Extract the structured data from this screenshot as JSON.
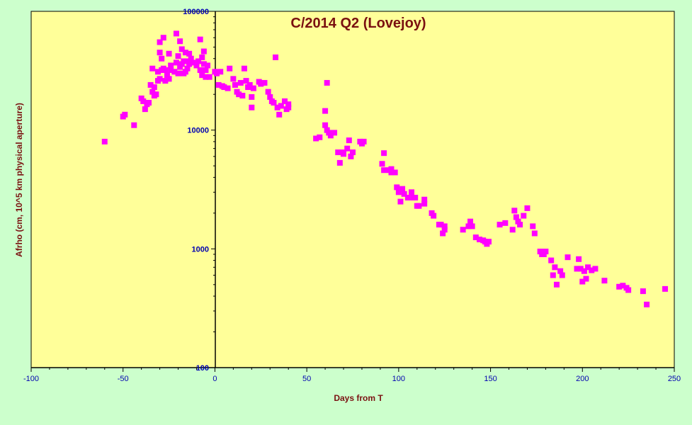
{
  "colors": {
    "outer_background": "#ccffcc",
    "plot_background": "#ffff99",
    "marker": "#ff00ff",
    "title": "#7a1010",
    "tick_labels": "#0000b0"
  },
  "chart_data": {
    "type": "scatter",
    "title": "C/2014 Q2 (Lovejoy)",
    "xlabel": "Days from T",
    "ylabel": "Afrho (cm, 10^5 km physical aperture)",
    "xlim": [
      -100,
      250
    ],
    "ylim": [
      100,
      100000
    ],
    "yscale": "log",
    "x_ticks": [
      -100,
      -50,
      0,
      50,
      100,
      150,
      200,
      250
    ],
    "x_tick_labels": [
      "-100",
      "-50",
      "0",
      "50",
      "100",
      "150",
      "200",
      "250"
    ],
    "y_ticks": [
      100,
      1000,
      10000,
      100000
    ],
    "y_tick_labels": [
      "100",
      "1000",
      "10000",
      "100000"
    ],
    "grid": false,
    "legend": "none",
    "marker": "square",
    "points": [
      [
        -60,
        8000
      ],
      [
        -50,
        13000
      ],
      [
        -49,
        13500
      ],
      [
        -44,
        11000
      ],
      [
        -40,
        18500
      ],
      [
        -39,
        17500
      ],
      [
        -38,
        15000
      ],
      [
        -37,
        16500
      ],
      [
        -36,
        17000
      ],
      [
        -35,
        24000
      ],
      [
        -34,
        21000
      ],
      [
        -34,
        33000
      ],
      [
        -33,
        23000
      ],
      [
        -33,
        19500
      ],
      [
        -32,
        20000
      ],
      [
        -31,
        31000
      ],
      [
        -31,
        26000
      ],
      [
        -30,
        27000
      ],
      [
        -30,
        45000
      ],
      [
        -30,
        55000
      ],
      [
        -29,
        32000
      ],
      [
        -29,
        40000
      ],
      [
        -28,
        33000
      ],
      [
        -28,
        60000
      ],
      [
        -27,
        26000
      ],
      [
        -27,
        32000
      ],
      [
        -26,
        29000
      ],
      [
        -25,
        44000
      ],
      [
        -25,
        27000
      ],
      [
        -24,
        35000
      ],
      [
        -24,
        32000
      ],
      [
        -22,
        31000
      ],
      [
        -21,
        65000
      ],
      [
        -21,
        37000
      ],
      [
        -20,
        30000
      ],
      [
        -20,
        42000
      ],
      [
        -19,
        34000
      ],
      [
        -19,
        56000
      ],
      [
        -18,
        48000
      ],
      [
        -18,
        36000
      ],
      [
        -17,
        38000
      ],
      [
        -17,
        30000
      ],
      [
        -16,
        45000
      ],
      [
        -16,
        31000
      ],
      [
        -15,
        38000
      ],
      [
        -15,
        33000
      ],
      [
        -14,
        44000
      ],
      [
        -14,
        36000
      ],
      [
        -13,
        40000
      ],
      [
        -12,
        37000
      ],
      [
        -10,
        35000
      ],
      [
        -9,
        38000
      ],
      [
        -8,
        32000
      ],
      [
        -8,
        58000
      ],
      [
        -7,
        41000
      ],
      [
        -7,
        29000
      ],
      [
        -6,
        46000
      ],
      [
        -6,
        36000
      ],
      [
        -5,
        32000
      ],
      [
        -5,
        28000
      ],
      [
        -4,
        35000
      ],
      [
        -3,
        28000
      ],
      [
        0,
        31000
      ],
      [
        1,
        30000
      ],
      [
        2,
        24000
      ],
      [
        3,
        31000
      ],
      [
        4,
        23500
      ],
      [
        5,
        23000
      ],
      [
        7,
        22500
      ],
      [
        8,
        33000
      ],
      [
        10,
        27000
      ],
      [
        11,
        24000
      ],
      [
        12,
        21000
      ],
      [
        13,
        20000
      ],
      [
        14,
        25000
      ],
      [
        15,
        19500
      ],
      [
        16,
        33000
      ],
      [
        17,
        26000
      ],
      [
        18,
        23000
      ],
      [
        19,
        24000
      ],
      [
        20,
        19000
      ],
      [
        20,
        15500
      ],
      [
        21,
        22500
      ],
      [
        24,
        25500
      ],
      [
        25,
        24500
      ],
      [
        27,
        25000
      ],
      [
        29,
        21000
      ],
      [
        30,
        19000
      ],
      [
        31,
        17500
      ],
      [
        32,
        17000
      ],
      [
        33,
        41000
      ],
      [
        34,
        15500
      ],
      [
        35,
        13500
      ],
      [
        36,
        16000
      ],
      [
        38,
        17500
      ],
      [
        39,
        15000
      ],
      [
        40,
        15500
      ],
      [
        40,
        16500
      ],
      [
        55,
        8500
      ],
      [
        57,
        8700
      ],
      [
        60,
        14500
      ],
      [
        60,
        11000
      ],
      [
        61,
        25000
      ],
      [
        61,
        10000
      ],
      [
        62,
        9500
      ],
      [
        63,
        9000
      ],
      [
        65,
        9500
      ],
      [
        67,
        6500
      ],
      [
        68,
        5300
      ],
      [
        69,
        6500
      ],
      [
        70,
        6300
      ],
      [
        72,
        7000
      ],
      [
        73,
        8200
      ],
      [
        74,
        6000
      ],
      [
        75,
        6500
      ],
      [
        79,
        8000
      ],
      [
        80,
        7700
      ],
      [
        81,
        8000
      ],
      [
        91,
        5200
      ],
      [
        92,
        6400
      ],
      [
        92,
        4600
      ],
      [
        95,
        4600
      ],
      [
        96,
        4400
      ],
      [
        96,
        4700
      ],
      [
        98,
        4400
      ],
      [
        99,
        3300
      ],
      [
        100,
        3000
      ],
      [
        101,
        2500
      ],
      [
        102,
        3200
      ],
      [
        103,
        2900
      ],
      [
        105,
        2700
      ],
      [
        107,
        3000
      ],
      [
        108,
        2700
      ],
      [
        109,
        2700
      ],
      [
        110,
        2300
      ],
      [
        111,
        2300
      ],
      [
        114,
        2600
      ],
      [
        114,
        2400
      ],
      [
        118,
        2000
      ],
      [
        119,
        1900
      ],
      [
        122,
        1600
      ],
      [
        123,
        1600
      ],
      [
        124,
        1350
      ],
      [
        125,
        1450
      ],
      [
        125,
        1550
      ],
      [
        135,
        1450
      ],
      [
        138,
        1550
      ],
      [
        139,
        1700
      ],
      [
        140,
        1550
      ],
      [
        142,
        1250
      ],
      [
        144,
        1200
      ],
      [
        146,
        1180
      ],
      [
        147,
        1150
      ],
      [
        148,
        1100
      ],
      [
        149,
        1150
      ],
      [
        155,
        1600
      ],
      [
        158,
        1650
      ],
      [
        162,
        1450
      ],
      [
        163,
        2100
      ],
      [
        164,
        1850
      ],
      [
        165,
        1700
      ],
      [
        166,
        1600
      ],
      [
        168,
        1900
      ],
      [
        170,
        2200
      ],
      [
        173,
        1550
      ],
      [
        174,
        1350
      ],
      [
        177,
        950
      ],
      [
        178,
        900
      ],
      [
        179,
        900
      ],
      [
        180,
        950
      ],
      [
        183,
        800
      ],
      [
        184,
        600
      ],
      [
        185,
        700
      ],
      [
        186,
        500
      ],
      [
        188,
        650
      ],
      [
        189,
        600
      ],
      [
        192,
        850
      ],
      [
        197,
        680
      ],
      [
        198,
        820
      ],
      [
        199,
        680
      ],
      [
        200,
        530
      ],
      [
        201,
        650
      ],
      [
        202,
        560
      ],
      [
        203,
        700
      ],
      [
        205,
        660
      ],
      [
        207,
        680
      ],
      [
        212,
        540
      ],
      [
        220,
        480
      ],
      [
        222,
        490
      ],
      [
        224,
        470
      ],
      [
        225,
        450
      ],
      [
        233,
        440
      ],
      [
        235,
        340
      ],
      [
        245,
        460
      ]
    ]
  }
}
